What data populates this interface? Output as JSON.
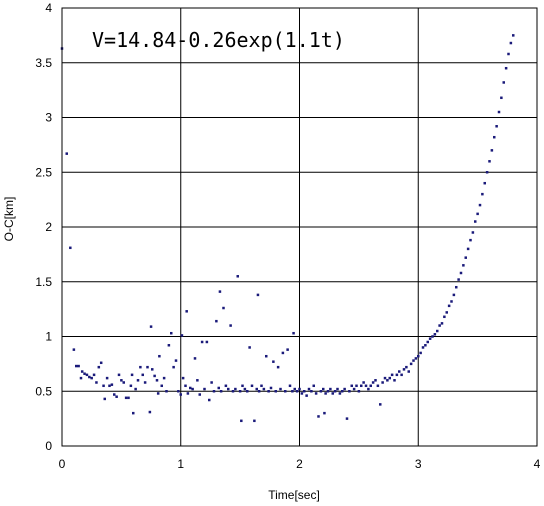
{
  "chart_data": {
    "type": "scatter",
    "title": "",
    "xlabel": "Time[sec]",
    "ylabel": "O-C[km]",
    "xlim": [
      0,
      4
    ],
    "ylim": [
      0,
      4
    ],
    "xticks": [
      "0",
      "1",
      "2",
      "3",
      "4"
    ],
    "yticks": [
      "0",
      "0.5",
      "1",
      "1.5",
      "2",
      "2.5",
      "3",
      "3.5",
      "4"
    ],
    "grid": true,
    "legend": "none",
    "annotation": "V=14.84-0.26exp(1.1t)",
    "marker_color": "#1a1a7a",
    "series": [
      {
        "points": [
          [
            0.0,
            3.63
          ],
          [
            0.04,
            2.67
          ],
          [
            0.07,
            1.81
          ],
          [
            0.1,
            0.88
          ],
          [
            0.12,
            0.73
          ],
          [
            0.14,
            0.73
          ],
          [
            0.16,
            0.62
          ],
          [
            0.17,
            0.68
          ],
          [
            0.19,
            0.66
          ],
          [
            0.21,
            0.65
          ],
          [
            0.23,
            0.63
          ],
          [
            0.25,
            0.62
          ],
          [
            0.27,
            0.65
          ],
          [
            0.29,
            0.58
          ],
          [
            0.31,
            0.72
          ],
          [
            0.33,
            0.76
          ],
          [
            0.35,
            0.55
          ],
          [
            0.36,
            0.43
          ],
          [
            0.38,
            0.62
          ],
          [
            0.4,
            0.55
          ],
          [
            0.42,
            0.56
          ],
          [
            0.44,
            0.47
          ],
          [
            0.46,
            0.45
          ],
          [
            0.48,
            0.65
          ],
          [
            0.5,
            0.6
          ],
          [
            0.52,
            0.58
          ],
          [
            0.54,
            0.44
          ],
          [
            0.56,
            0.44
          ],
          [
            0.58,
            0.55
          ],
          [
            0.59,
            0.65
          ],
          [
            0.6,
            0.3
          ],
          [
            0.62,
            0.52
          ],
          [
            0.64,
            0.6
          ],
          [
            0.66,
            0.72
          ],
          [
            0.68,
            0.65
          ],
          [
            0.7,
            0.58
          ],
          [
            0.72,
            0.72
          ],
          [
            0.74,
            0.31
          ],
          [
            0.75,
            1.09
          ],
          [
            0.76,
            0.7
          ],
          [
            0.78,
            0.64
          ],
          [
            0.8,
            0.6
          ],
          [
            0.81,
            0.48
          ],
          [
            0.82,
            0.82
          ],
          [
            0.84,
            0.55
          ],
          [
            0.86,
            0.62
          ],
          [
            0.88,
            0.5
          ],
          [
            0.9,
            0.92
          ],
          [
            0.92,
            1.03
          ],
          [
            0.94,
            0.72
          ],
          [
            0.96,
            0.78
          ],
          [
            0.98,
            0.5
          ],
          [
            1.0,
            0.47
          ],
          [
            1.01,
            1.01
          ],
          [
            1.02,
            0.62
          ],
          [
            1.04,
            0.55
          ],
          [
            1.05,
            1.23
          ],
          [
            1.06,
            0.48
          ],
          [
            1.08,
            0.53
          ],
          [
            1.1,
            0.52
          ],
          [
            1.12,
            0.8
          ],
          [
            1.14,
            0.6
          ],
          [
            1.16,
            0.47
          ],
          [
            1.18,
            0.95
          ],
          [
            1.2,
            0.52
          ],
          [
            1.22,
            0.95
          ],
          [
            1.24,
            0.42
          ],
          [
            1.26,
            0.58
          ],
          [
            1.28,
            0.5
          ],
          [
            1.3,
            1.14
          ],
          [
            1.32,
            0.53
          ],
          [
            1.33,
            1.41
          ],
          [
            1.34,
            0.5
          ],
          [
            1.36,
            1.26
          ],
          [
            1.38,
            0.55
          ],
          [
            1.4,
            0.52
          ],
          [
            1.42,
            1.1
          ],
          [
            1.44,
            0.5
          ],
          [
            1.46,
            0.52
          ],
          [
            1.48,
            1.55
          ],
          [
            1.5,
            0.5
          ],
          [
            1.51,
            0.23
          ],
          [
            1.52,
            0.55
          ],
          [
            1.54,
            0.52
          ],
          [
            1.56,
            0.5
          ],
          [
            1.58,
            0.9
          ],
          [
            1.6,
            0.55
          ],
          [
            1.62,
            0.23
          ],
          [
            1.64,
            0.52
          ],
          [
            1.65,
            1.38
          ],
          [
            1.66,
            0.5
          ],
          [
            1.68,
            0.55
          ],
          [
            1.7,
            0.52
          ],
          [
            1.72,
            0.82
          ],
          [
            1.74,
            0.5
          ],
          [
            1.76,
            0.53
          ],
          [
            1.78,
            0.77
          ],
          [
            1.8,
            0.5
          ],
          [
            1.82,
            0.72
          ],
          [
            1.84,
            0.52
          ],
          [
            1.86,
            0.85
          ],
          [
            1.88,
            0.5
          ],
          [
            1.9,
            0.88
          ],
          [
            1.92,
            0.55
          ],
          [
            1.94,
            0.5
          ],
          [
            1.95,
            1.03
          ],
          [
            1.96,
            0.52
          ],
          [
            1.98,
            0.5
          ],
          [
            2.0,
            0.52
          ],
          [
            2.02,
            0.48
          ],
          [
            2.04,
            0.5
          ],
          [
            2.06,
            0.46
          ],
          [
            2.08,
            0.52
          ],
          [
            2.1,
            0.5
          ],
          [
            2.12,
            0.55
          ],
          [
            2.14,
            0.48
          ],
          [
            2.16,
            0.27
          ],
          [
            2.18,
            0.5
          ],
          [
            2.2,
            0.52
          ],
          [
            2.21,
            0.3
          ],
          [
            2.22,
            0.48
          ],
          [
            2.24,
            0.5
          ],
          [
            2.26,
            0.52
          ],
          [
            2.28,
            0.48
          ],
          [
            2.3,
            0.5
          ],
          [
            2.32,
            0.52
          ],
          [
            2.34,
            0.48
          ],
          [
            2.36,
            0.5
          ],
          [
            2.38,
            0.52
          ],
          [
            2.4,
            0.25
          ],
          [
            2.42,
            0.5
          ],
          [
            2.44,
            0.55
          ],
          [
            2.46,
            0.52
          ],
          [
            2.48,
            0.55
          ],
          [
            2.5,
            0.5
          ],
          [
            2.52,
            0.55
          ],
          [
            2.54,
            0.58
          ],
          [
            2.56,
            0.55
          ],
          [
            2.58,
            0.52
          ],
          [
            2.6,
            0.55
          ],
          [
            2.62,
            0.58
          ],
          [
            2.64,
            0.6
          ],
          [
            2.66,
            0.55
          ],
          [
            2.68,
            0.38
          ],
          [
            2.7,
            0.58
          ],
          [
            2.72,
            0.62
          ],
          [
            2.74,
            0.6
          ],
          [
            2.76,
            0.62
          ],
          [
            2.78,
            0.65
          ],
          [
            2.8,
            0.6
          ],
          [
            2.82,
            0.65
          ],
          [
            2.84,
            0.68
          ],
          [
            2.86,
            0.65
          ],
          [
            2.88,
            0.7
          ],
          [
            2.9,
            0.72
          ],
          [
            2.92,
            0.68
          ],
          [
            2.94,
            0.75
          ],
          [
            2.96,
            0.78
          ],
          [
            2.98,
            0.8
          ],
          [
            3.0,
            0.82
          ],
          [
            3.02,
            0.85
          ],
          [
            3.04,
            0.9
          ],
          [
            3.06,
            0.92
          ],
          [
            3.08,
            0.95
          ],
          [
            3.1,
            0.98
          ],
          [
            3.12,
            1.0
          ],
          [
            3.14,
            1.02
          ],
          [
            3.16,
            1.05
          ],
          [
            3.18,
            1.1
          ],
          [
            3.2,
            1.12
          ],
          [
            3.22,
            1.18
          ],
          [
            3.24,
            1.22
          ],
          [
            3.26,
            1.28
          ],
          [
            3.28,
            1.32
          ],
          [
            3.3,
            1.38
          ],
          [
            3.32,
            1.45
          ],
          [
            3.34,
            1.52
          ],
          [
            3.36,
            1.58
          ],
          [
            3.38,
            1.65
          ],
          [
            3.4,
            1.72
          ],
          [
            3.42,
            1.8
          ],
          [
            3.44,
            1.88
          ],
          [
            3.46,
            1.95
          ],
          [
            3.48,
            2.05
          ],
          [
            3.5,
            2.12
          ],
          [
            3.52,
            2.2
          ],
          [
            3.54,
            2.3
          ],
          [
            3.56,
            2.4
          ],
          [
            3.58,
            2.5
          ],
          [
            3.6,
            2.6
          ],
          [
            3.62,
            2.7
          ],
          [
            3.64,
            2.82
          ],
          [
            3.66,
            2.92
          ],
          [
            3.68,
            3.05
          ],
          [
            3.7,
            3.18
          ],
          [
            3.72,
            3.32
          ],
          [
            3.74,
            3.45
          ],
          [
            3.76,
            3.58
          ],
          [
            3.78,
            3.68
          ],
          [
            3.8,
            3.75
          ]
        ]
      }
    ]
  }
}
